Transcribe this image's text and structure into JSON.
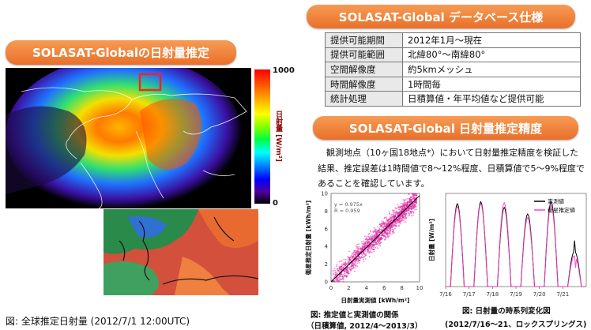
{
  "left": {
    "banner": "SOLASAT-Globalの日射量推定",
    "colorbar": {
      "max": "1000",
      "min": "0",
      "unit": "日射量 [W/m²]"
    },
    "caption": "図: 全球推定日射量 (2012/7/1 12:00UTC)"
  },
  "spec": {
    "banner": "SOLASAT-Global データベース仕様",
    "rows": [
      {
        "key": "提供可能期間",
        "value": "2012年1月～現在"
      },
      {
        "key": "提供可能範囲",
        "value": "北緯80°～南緯80°"
      },
      {
        "key": "空間解像度",
        "value": "約5kmメッシュ"
      },
      {
        "key": "時間解像度",
        "value": "1時間毎"
      },
      {
        "key": "統計処理",
        "value": "日積算値・年平均値など提供可能"
      }
    ]
  },
  "accuracy": {
    "banner": "SOLASAT-Global 日射量推定精度",
    "text": "観測地点（10ヶ国18地点*）において日射量推定精度を検証した結果、推定誤差は1時間値で8～12%程度、日積算値で5～9%程度であることを確認しています。"
  },
  "chart_data": [
    {
      "type": "scatter",
      "xlabel": "日射量実測値 [kWh/m²]",
      "ylabel": "衛星推定日射量 [kWh/m²]",
      "xlim": [
        0,
        10
      ],
      "ylim": [
        0,
        10
      ],
      "xticks": [
        "0",
        "2",
        "4",
        "6",
        "8",
        "10"
      ],
      "yticks": [
        "0",
        "2",
        "4",
        "6",
        "8",
        "10"
      ],
      "annotation": [
        "y = 0.975x",
        "R = 0.959"
      ],
      "fit": {
        "slope": 0.975,
        "r": 0.959
      },
      "color": "#e020a0",
      "caption": [
        "図: 推定値と実測値の関係",
        "（日積算値, 2012/4～2013/3）"
      ]
    },
    {
      "type": "line",
      "ylabel": "日射量 [W/m²]",
      "x_ticks": [
        "7/16",
        "7/17",
        "7/18",
        "7/19",
        "7/20",
        "7/21"
      ],
      "series": [
        {
          "name": "実測値",
          "color": "#000000",
          "peaks": [
            890,
            910,
            850,
            780,
            910,
            380
          ]
        },
        {
          "name": "衛星推定値",
          "color": "#ff40c0",
          "peaks": [
            860,
            890,
            900,
            740,
            870,
            330
          ]
        }
      ],
      "caption": [
        "図: 日射量の時系列変化図",
        "(2012/7/16～21、ロックスプリングス)"
      ]
    }
  ]
}
